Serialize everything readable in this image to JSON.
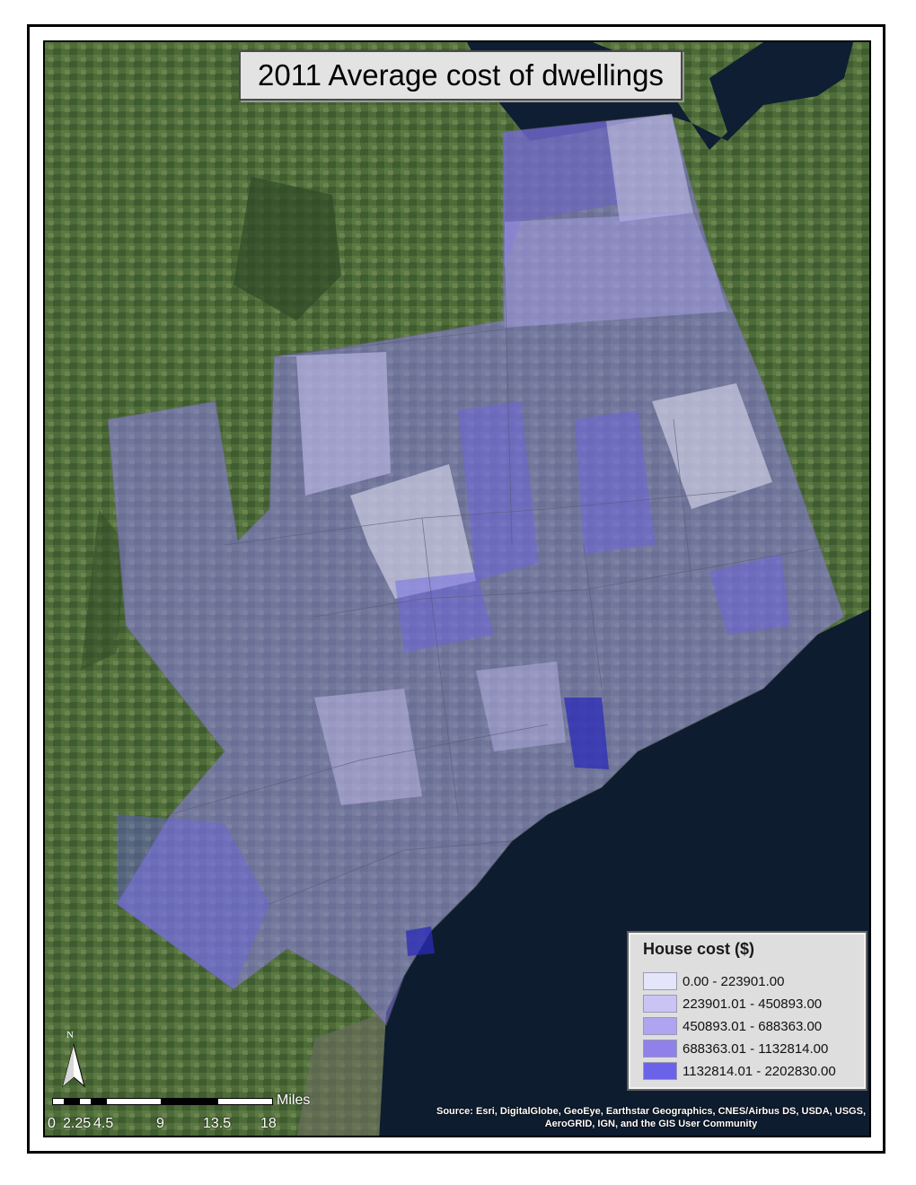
{
  "title": "2011 Average cost of dwellings",
  "legend": {
    "title": "House cost ($)",
    "classes": [
      {
        "label": "0.00 - 223901.00",
        "color": "#e4e4fa"
      },
      {
        "label": "223901.01 - 450893.00",
        "color": "#c9c4f4"
      },
      {
        "label": "450893.01 - 688363.00",
        "color": "#aea4ef"
      },
      {
        "label": "688363.01 - 1132814.00",
        "color": "#8f80ea"
      },
      {
        "label": "1132814.01 - 2202830.00",
        "color": "#6a62e8"
      }
    ]
  },
  "north_arrow": {
    "label": "N",
    "icon": "north-arrow-icon"
  },
  "scale_bar": {
    "unit": "Miles",
    "labels": [
      "0",
      "2.25",
      "4.5",
      "9",
      "13.5",
      "18"
    ]
  },
  "source": "Source: Esri, DigitalGlobe, GeoEye, Earthstar Geographics, CNES/Airbus DS, USDA, USGS, AeroGRID, IGN, and the GIS User Community",
  "colors": {
    "land": "#4a6a38",
    "lake": "#0e1c30",
    "frame": "#000000"
  }
}
